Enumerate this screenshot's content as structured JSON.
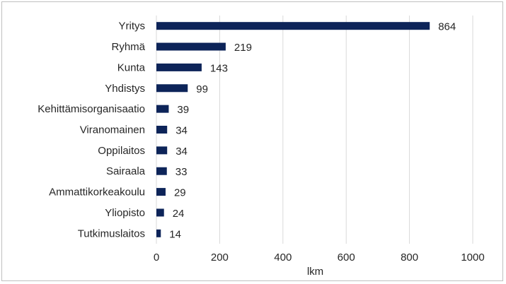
{
  "chart_data": {
    "type": "bar",
    "orientation": "horizontal",
    "categories": [
      "Yritys",
      "Ryhmä",
      "Kunta",
      "Yhdistys",
      "Kehittämisorganisaatio",
      "Viranomainen",
      "Oppilaitos",
      "Sairaala",
      "Ammattikorkeakoulu",
      "Yliopisto",
      "Tutkimuslaitos"
    ],
    "values": [
      864,
      219,
      143,
      99,
      39,
      34,
      34,
      33,
      29,
      24,
      14
    ],
    "xlabel": "lkm",
    "ylabel": "",
    "xlim": [
      0,
      1000
    ],
    "xticks": [
      "0",
      "200",
      "400",
      "600",
      "800",
      "1000"
    ],
    "grid": "vertical",
    "legend": "none",
    "colors": {
      "bar": "#0d2459",
      "grid": "#d9d9d9",
      "text": "#262626"
    }
  }
}
